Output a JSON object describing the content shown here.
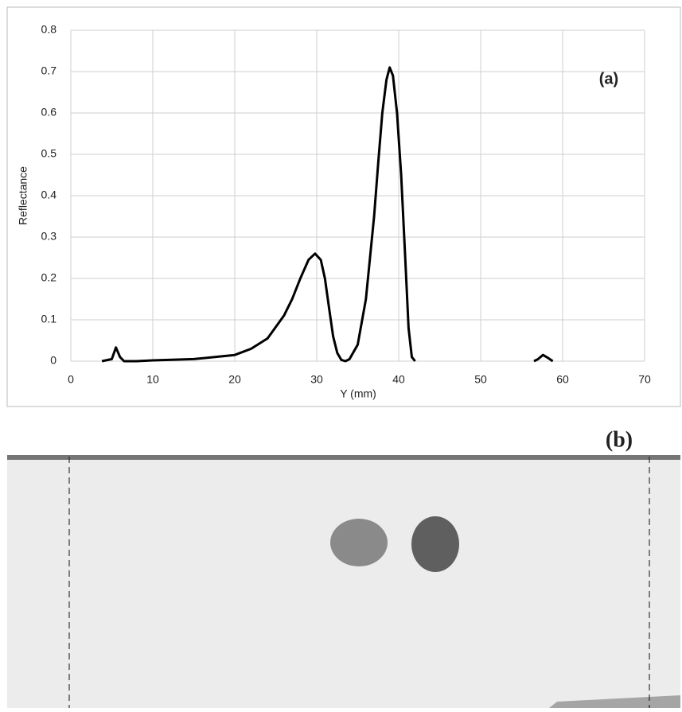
{
  "chart_data": {
    "type": "line",
    "panel_label": "(a)",
    "xlabel": "Y (mm)",
    "ylabel": "Reflectance",
    "x": [
      3.8,
      5,
      5.5,
      6,
      6.5,
      8,
      10,
      15,
      20,
      22,
      24,
      26,
      27,
      28,
      29,
      29.8,
      30.5,
      31,
      31.5,
      32,
      32.5,
      33,
      33.5,
      34,
      35,
      36,
      37,
      37.5,
      38,
      38.5,
      38.9,
      39.3,
      39.8,
      40.3,
      40.8,
      41.2,
      41.6,
      42,
      50,
      56.5,
      57,
      57.6,
      58.2,
      58.8
    ],
    "series": [
      {
        "color": "#000000",
        "values": [
          0,
          0.005,
          0.033,
          0.01,
          0,
          0,
          0.002,
          0.005,
          0.015,
          0.03,
          0.055,
          0.11,
          0.15,
          0.2,
          0.245,
          0.26,
          0.245,
          0.2,
          0.13,
          0.06,
          0.02,
          0.003,
          0,
          0.005,
          0.04,
          0.15,
          0.35,
          0.48,
          0.6,
          0.68,
          0.71,
          0.69,
          0.6,
          0.45,
          0.25,
          0.08,
          0.01,
          0,
          null,
          0,
          0.005,
          0.015,
          0.008,
          0
        ]
      }
    ],
    "xlim": [
      0,
      70
    ],
    "xticks": [
      0,
      10,
      20,
      30,
      40,
      50,
      60,
      70
    ],
    "ylim": [
      0,
      0.8
    ],
    "yticks": [
      0,
      0.1,
      0.2,
      0.3,
      0.4,
      0.5,
      0.6,
      0.7,
      0.8
    ],
    "grid": true
  },
  "photo": {
    "panel_label": "(b)"
  }
}
